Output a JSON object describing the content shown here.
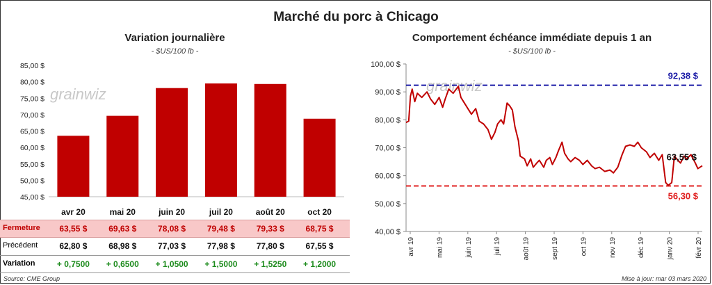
{
  "main_title": "Marché du porc à Chicago",
  "left_panel": {
    "title": "Variation journalière",
    "subtitle": "- $US/100 lb -",
    "watermark": "grainwiz"
  },
  "right_panel": {
    "title": "Comportement échéance immédiate depuis 1 an",
    "subtitle": "- $US/100 lb -",
    "watermark": "grainwiz"
  },
  "table": {
    "rows": [
      {
        "label": "Fermeture",
        "values": [
          "63,55 $",
          "69,63 $",
          "78,08 $",
          "79,48 $",
          "79,33 $",
          "68,75 $"
        ]
      },
      {
        "label": "Précédent",
        "values": [
          "62,80 $",
          "68,98 $",
          "77,03 $",
          "77,98 $",
          "77,80 $",
          "67,55 $"
        ]
      },
      {
        "label": "Variation",
        "values": [
          "+ 0,7500",
          "+ 0,6500",
          "+ 1,0500",
          "+ 1,5000",
          "+ 1,5250",
          "+ 1,2000"
        ]
      }
    ]
  },
  "footer": {
    "source": "Source: CME Group",
    "updated": "Mise à jour: mar 03 mars 2020"
  },
  "colors": {
    "bar": "#c00000",
    "line": "#c00000",
    "high_line": "#1a1aa6",
    "low_line": "#e02020",
    "variation_text": "#1e8c1e",
    "fermeture_band": "#f8c8c8"
  },
  "chart_data": [
    {
      "type": "bar",
      "title": "Variation journalière",
      "subtitle": "- $US/100 lb -",
      "categories": [
        "avr 20",
        "mai 20",
        "juin 20",
        "juil 20",
        "août 20",
        "oct 20"
      ],
      "values": [
        63.55,
        69.63,
        78.08,
        79.48,
        79.33,
        68.75
      ],
      "ylim": [
        45,
        85
      ],
      "yticks": [
        "45,00 $",
        "50,00 $",
        "55,00 $",
        "60,00 $",
        "65,00 $",
        "70,00 $",
        "75,00 $",
        "80,00 $",
        "85,00 $"
      ],
      "grid": false
    },
    {
      "type": "line",
      "title": "Comportement échéance immédiate depuis 1 an",
      "subtitle": "- $US/100 lb -",
      "ylim": [
        40,
        100
      ],
      "yticks": [
        "40,00 $",
        "50,00 $",
        "60,00 $",
        "70,00 $",
        "80,00 $",
        "90,00 $",
        "100,00 $"
      ],
      "x_tick_labels": [
        "avr 19",
        "mai 19",
        "juin 19",
        "juil 19",
        "août 19",
        "sept 19",
        "oct 19",
        "nov 19",
        "déc 19",
        "janv 20",
        "févr 20"
      ],
      "x_range": [
        "2019-03-29",
        "2020-03-03"
      ],
      "points": [
        [
          "2019-03-29",
          79.0
        ],
        [
          "2019-04-01",
          79.5
        ],
        [
          "2019-04-03",
          88.5
        ],
        [
          "2019-04-05",
          91.0
        ],
        [
          "2019-04-08",
          86.5
        ],
        [
          "2019-04-11",
          89.5
        ],
        [
          "2019-04-16",
          88.0
        ],
        [
          "2019-04-22",
          90.0
        ],
        [
          "2019-04-26",
          87.5
        ],
        [
          "2019-05-01",
          85.5
        ],
        [
          "2019-05-06",
          88.0
        ],
        [
          "2019-05-10",
          84.5
        ],
        [
          "2019-05-13",
          87.5
        ],
        [
          "2019-05-17",
          91.0
        ],
        [
          "2019-05-22",
          89.5
        ],
        [
          "2019-05-28",
          92.0
        ],
        [
          "2019-05-31",
          88.0
        ],
        [
          "2019-06-04",
          86.0
        ],
        [
          "2019-06-07",
          84.5
        ],
        [
          "2019-06-12",
          82.0
        ],
        [
          "2019-06-17",
          84.0
        ],
        [
          "2019-06-21",
          79.5
        ],
        [
          "2019-06-26",
          78.5
        ],
        [
          "2019-07-01",
          76.5
        ],
        [
          "2019-07-05",
          73.0
        ],
        [
          "2019-07-09",
          75.5
        ],
        [
          "2019-07-12",
          78.5
        ],
        [
          "2019-07-16",
          80.0
        ],
        [
          "2019-07-19",
          78.5
        ],
        [
          "2019-07-23",
          86.0
        ],
        [
          "2019-07-26",
          85.0
        ],
        [
          "2019-07-29",
          83.5
        ],
        [
          "2019-08-01",
          77.5
        ],
        [
          "2019-08-05",
          72.5
        ],
        [
          "2019-08-07",
          67.0
        ],
        [
          "2019-08-12",
          66.0
        ],
        [
          "2019-08-15",
          63.5
        ],
        [
          "2019-08-19",
          66.0
        ],
        [
          "2019-08-22",
          63.0
        ],
        [
          "2019-08-26",
          64.5
        ],
        [
          "2019-08-29",
          65.5
        ],
        [
          "2019-09-03",
          63.0
        ],
        [
          "2019-09-06",
          65.5
        ],
        [
          "2019-09-10",
          66.5
        ],
        [
          "2019-09-13",
          64.0
        ],
        [
          "2019-09-17",
          66.5
        ],
        [
          "2019-09-20",
          69.0
        ],
        [
          "2019-09-24",
          72.0
        ],
        [
          "2019-09-27",
          68.0
        ],
        [
          "2019-10-01",
          66.0
        ],
        [
          "2019-10-04",
          65.0
        ],
        [
          "2019-10-09",
          66.5
        ],
        [
          "2019-10-14",
          65.5
        ],
        [
          "2019-10-18",
          64.0
        ],
        [
          "2019-10-23",
          65.5
        ],
        [
          "2019-10-28",
          63.5
        ],
        [
          "2019-11-01",
          62.5
        ],
        [
          "2019-11-06",
          63.0
        ],
        [
          "2019-11-12",
          61.5
        ],
        [
          "2019-11-18",
          62.0
        ],
        [
          "2019-11-22",
          61.0
        ],
        [
          "2019-11-27",
          63.0
        ],
        [
          "2019-12-02",
          67.5
        ],
        [
          "2019-12-06",
          70.5
        ],
        [
          "2019-12-11",
          71.0
        ],
        [
          "2019-12-16",
          70.5
        ],
        [
          "2019-12-20",
          72.0
        ],
        [
          "2019-12-24",
          70.0
        ],
        [
          "2019-12-30",
          68.5
        ],
        [
          "2020-01-03",
          66.5
        ],
        [
          "2020-01-08",
          68.0
        ],
        [
          "2020-01-13",
          65.5
        ],
        [
          "2020-01-17",
          67.5
        ],
        [
          "2020-01-21",
          57.5
        ],
        [
          "2020-01-24",
          56.5
        ],
        [
          "2020-01-28",
          57.5
        ],
        [
          "2020-01-31",
          67.0
        ],
        [
          "2020-02-04",
          65.5
        ],
        [
          "2020-02-07",
          64.5
        ],
        [
          "2020-02-11",
          67.0
        ],
        [
          "2020-02-14",
          66.0
        ],
        [
          "2020-02-19",
          67.5
        ],
        [
          "2020-02-24",
          64.5
        ],
        [
          "2020-02-27",
          62.5
        ],
        [
          "2020-03-03",
          63.55
        ]
      ],
      "high": {
        "value": 92.38,
        "label": "92,38 $"
      },
      "low": {
        "value": 56.3,
        "label": "56,30 $"
      },
      "last": {
        "value": 63.55,
        "label": "63,55 $"
      },
      "grid": false
    }
  ]
}
